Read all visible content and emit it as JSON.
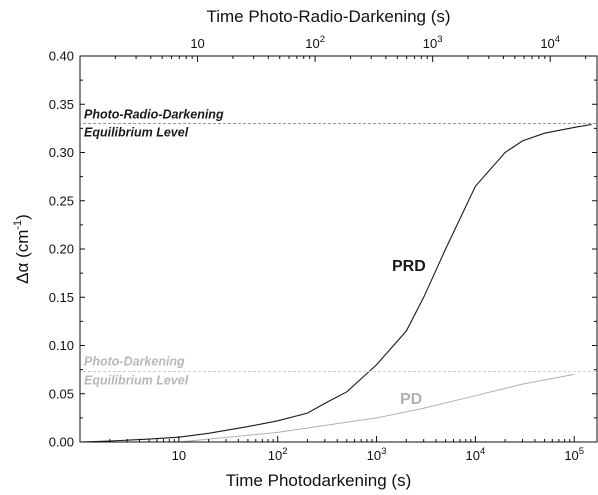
{
  "chart_data": {
    "type": "line",
    "top_xlabel": "Time Photo-Radio-Darkening (s)",
    "bottom_xlabel": "Time Photodarkening (s)",
    "ylabel_main": "Δα (cm",
    "ylabel_sup": "-1",
    "ylabel_close": ")",
    "x_scale": "log",
    "xlim_bottom": [
      1,
      170000
    ],
    "xlim_top": [
      1,
      25000
    ],
    "ylim": [
      0,
      0.4
    ],
    "bottom_ticks": [
      {
        "value": 10,
        "base": "10",
        "exp": ""
      },
      {
        "value": 100,
        "base": "10",
        "exp": "2"
      },
      {
        "value": 1000,
        "base": "10",
        "exp": "3"
      },
      {
        "value": 10000,
        "base": "10",
        "exp": "4"
      },
      {
        "value": 100000,
        "base": "10",
        "exp": "5"
      }
    ],
    "top_ticks": [
      {
        "value": 10,
        "base": "10",
        "exp": ""
      },
      {
        "value": 100,
        "base": "10",
        "exp": "2"
      },
      {
        "value": 1000,
        "base": "10",
        "exp": "3"
      },
      {
        "value": 10000,
        "base": "10",
        "exp": "4"
      }
    ],
    "y_ticks": [
      "0.00",
      "0.05",
      "0.10",
      "0.15",
      "0.20",
      "0.25",
      "0.30",
      "0.35",
      "0.40"
    ],
    "series": [
      {
        "name": "PRD",
        "color": "#1a1a1a",
        "x": [
          1,
          2,
          5,
          10,
          20,
          50,
          100,
          200,
          300,
          500,
          1000,
          2000,
          3000,
          5000,
          10000,
          20000,
          30000,
          50000,
          100000,
          150000
        ],
        "y": [
          0.0,
          0.001,
          0.003,
          0.005,
          0.009,
          0.016,
          0.022,
          0.03,
          0.04,
          0.052,
          0.08,
          0.115,
          0.15,
          0.2,
          0.265,
          0.3,
          0.312,
          0.32,
          0.326,
          0.329
        ]
      },
      {
        "name": "PD",
        "color": "#b0b0b0",
        "x": [
          1,
          10,
          100,
          1000,
          3000,
          10000,
          30000,
          100000
        ],
        "y": [
          0.0,
          0.0,
          0.01,
          0.025,
          0.035,
          0.048,
          0.06,
          0.07
        ]
      }
    ],
    "annotations": {
      "prd_equilibrium": {
        "line1": "Photo-Radio-Darkening",
        "line2": "Equilibrium Level",
        "y": 0.33,
        "color": "#1a1a1a"
      },
      "pd_equilibrium": {
        "line1": "Photo-Darkening",
        "line2": "Equilibrium Level",
        "y": 0.073,
        "color": "#b8b8b8"
      }
    }
  }
}
